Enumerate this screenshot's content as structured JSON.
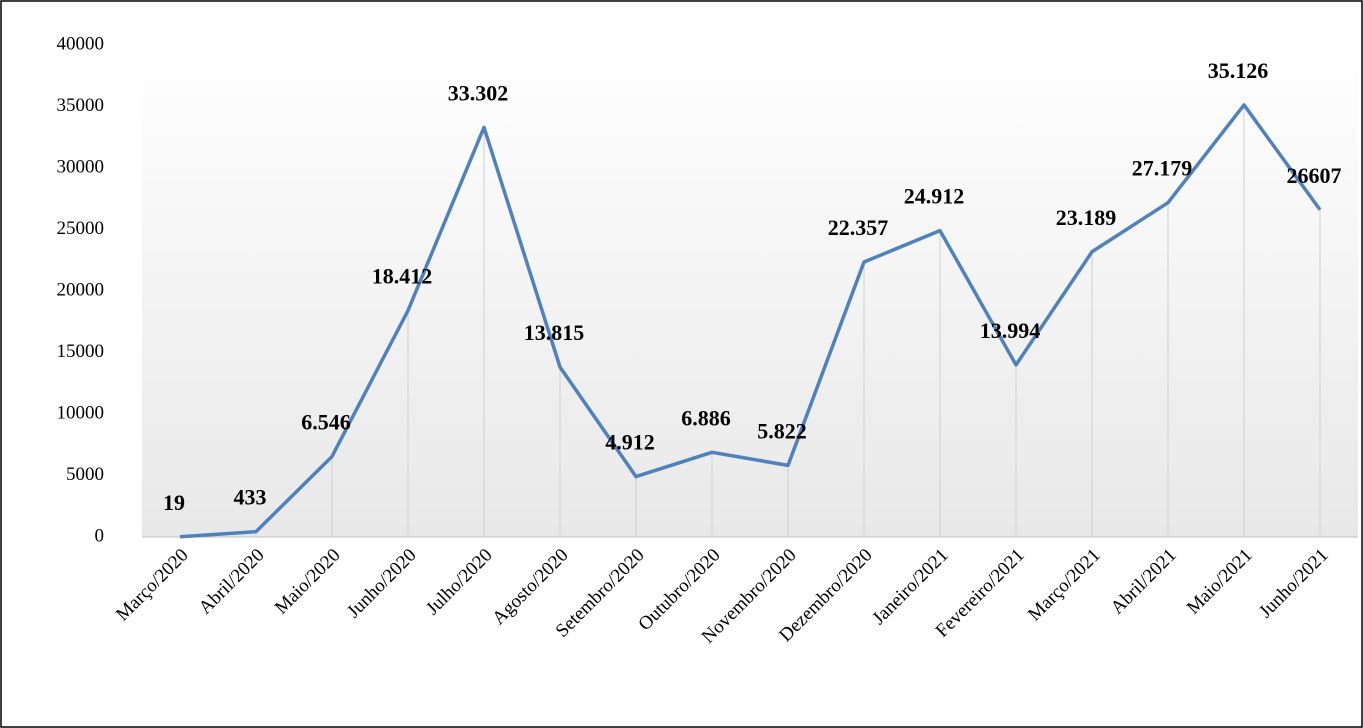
{
  "chart_data": {
    "type": "line",
    "categories": [
      "Março/2020",
      "Abril/2020",
      "Maio/2020",
      "Junho/2020",
      "Julho/2020",
      "Agosto/2020",
      "Setembro/2020",
      "Outubro/2020",
      "Novembro/2020",
      "Dezembro/2020",
      "Janeiro/2021",
      "Fevereiro/2021",
      "Março/2021",
      "Abril/2021",
      "Maio/2021",
      "Junho/2021"
    ],
    "values": [
      19,
      433,
      6546,
      18412,
      33302,
      13815,
      4912,
      6886,
      5822,
      22357,
      24912,
      13994,
      23189,
      27179,
      35126,
      26607
    ],
    "value_labels": [
      "19",
      "433",
      "6.546",
      "18.412",
      "33.302",
      "13.815",
      "4.912",
      "6.886",
      "5.822",
      "22.357",
      "24.912",
      "13.994",
      "23.189",
      "27.179",
      "35.126",
      "26607"
    ],
    "color": "#4f81bd",
    "ylim": [
      0,
      40000
    ],
    "yticks": [
      0,
      5000,
      10000,
      15000,
      20000,
      25000,
      30000,
      35000,
      40000
    ],
    "drop_lines": true
  }
}
